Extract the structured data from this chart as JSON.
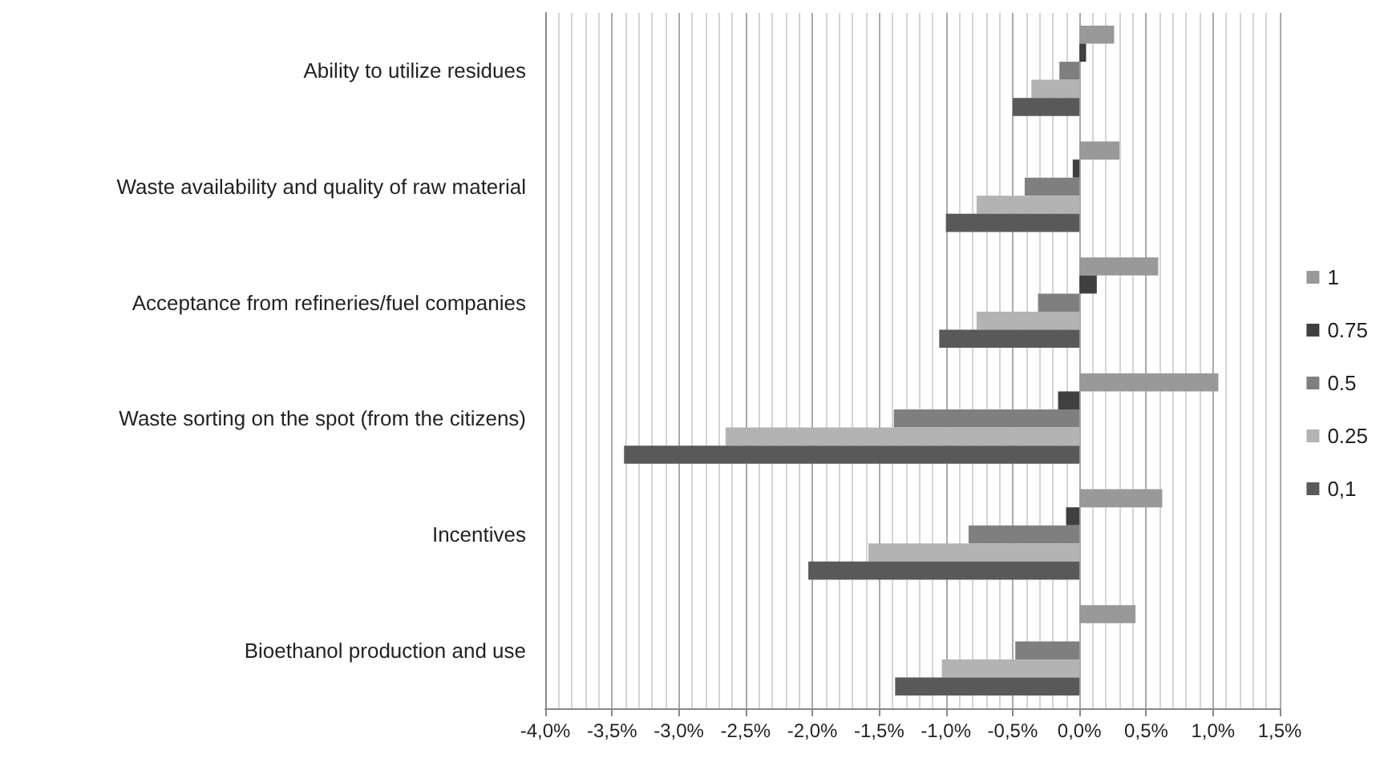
{
  "chart_data": {
    "type": "bar",
    "orientation": "horizontal",
    "categories": [
      "Ability to utilize residues",
      "Waste availability and quality of raw material",
      "Acceptance from refineries/fuel companies",
      "Waste sorting on the spot (from the citizens)",
      "Incentives",
      "Bioethanol production and use"
    ],
    "series": [
      {
        "name": "1",
        "color": "#999999",
        "values": [
          0.26,
          0.3,
          0.59,
          1.04,
          0.62,
          0.42
        ]
      },
      {
        "name": "0.75",
        "color": "#404040",
        "values": [
          0.05,
          -0.05,
          0.13,
          -0.16,
          -0.1,
          0
        ]
      },
      {
        "name": "0.5",
        "color": "#7f7f7f",
        "values": [
          -0.15,
          -0.41,
          -0.31,
          -1.39,
          -0.83,
          -0.48
        ]
      },
      {
        "name": "0.25",
        "color": "#b3b3b3",
        "values": [
          -0.36,
          -0.77,
          -0.77,
          -2.65,
          -1.58,
          -1.03
        ]
      },
      {
        "name": "0,1",
        "color": "#595959",
        "values": [
          -0.5,
          -1.0,
          -1.05,
          -3.41,
          -2.03,
          -1.38
        ]
      }
    ],
    "xlim": [
      -4,
      1.5
    ],
    "xticks": [
      {
        "value": -4,
        "label": "-4,0%"
      },
      {
        "value": -3.5,
        "label": "-3,5%"
      },
      {
        "value": -3,
        "label": "-3,0%"
      },
      {
        "value": -2.5,
        "label": "-2,5%"
      },
      {
        "value": -2,
        "label": "-2,0%"
      },
      {
        "value": -1.5,
        "label": "-1,5%"
      },
      {
        "value": -1,
        "label": "-1,0%"
      },
      {
        "value": -0.5,
        "label": "-0,5%"
      },
      {
        "value": 0,
        "label": "0,0%"
      },
      {
        "value": 0.5,
        "label": "0,5%"
      },
      {
        "value": 1,
        "label": "1,0%"
      },
      {
        "value": 1.5,
        "label": "1,5%"
      }
    ],
    "grid": "x",
    "legend": "right"
  }
}
